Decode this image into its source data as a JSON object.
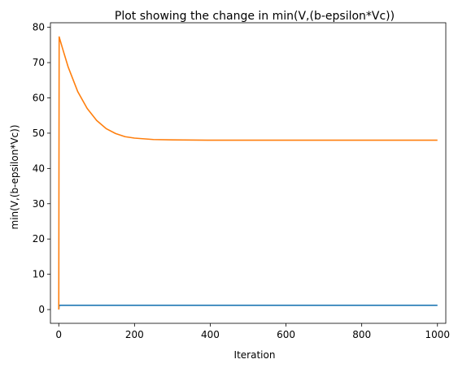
{
  "chart_data": {
    "type": "line",
    "title": "Plot showing the change in min(V,(b-epsilon*Vc))",
    "xlabel": "Iteration",
    "ylabel": "min(V,(b-epsilon*Vc))",
    "xlim": [
      -22,
      1022
    ],
    "ylim": [
      -3.9,
      81.3
    ],
    "xticks": [
      0,
      200,
      400,
      600,
      800,
      1000
    ],
    "yticks": [
      0,
      10,
      20,
      30,
      40,
      50,
      60,
      70,
      80
    ],
    "grid": false,
    "series": [
      {
        "name": "series-1",
        "color": "#1f77b4",
        "points": [
          [
            0,
            0.0
          ],
          [
            1,
            1.2
          ],
          [
            5,
            1.2
          ],
          [
            1000,
            1.2
          ]
        ]
      },
      {
        "name": "series-2",
        "color": "#ff7f0e",
        "points": [
          [
            0,
            0.0
          ],
          [
            1,
            77.3
          ],
          [
            10,
            74.0
          ],
          [
            25,
            68.7
          ],
          [
            50,
            61.8
          ],
          [
            75,
            57.0
          ],
          [
            100,
            53.6
          ],
          [
            125,
            51.3
          ],
          [
            150,
            49.9
          ],
          [
            175,
            49.0
          ],
          [
            200,
            48.6
          ],
          [
            250,
            48.2
          ],
          [
            300,
            48.1
          ],
          [
            400,
            48.0
          ],
          [
            600,
            48.0
          ],
          [
            800,
            48.0
          ],
          [
            1000,
            48.0
          ]
        ]
      }
    ]
  }
}
